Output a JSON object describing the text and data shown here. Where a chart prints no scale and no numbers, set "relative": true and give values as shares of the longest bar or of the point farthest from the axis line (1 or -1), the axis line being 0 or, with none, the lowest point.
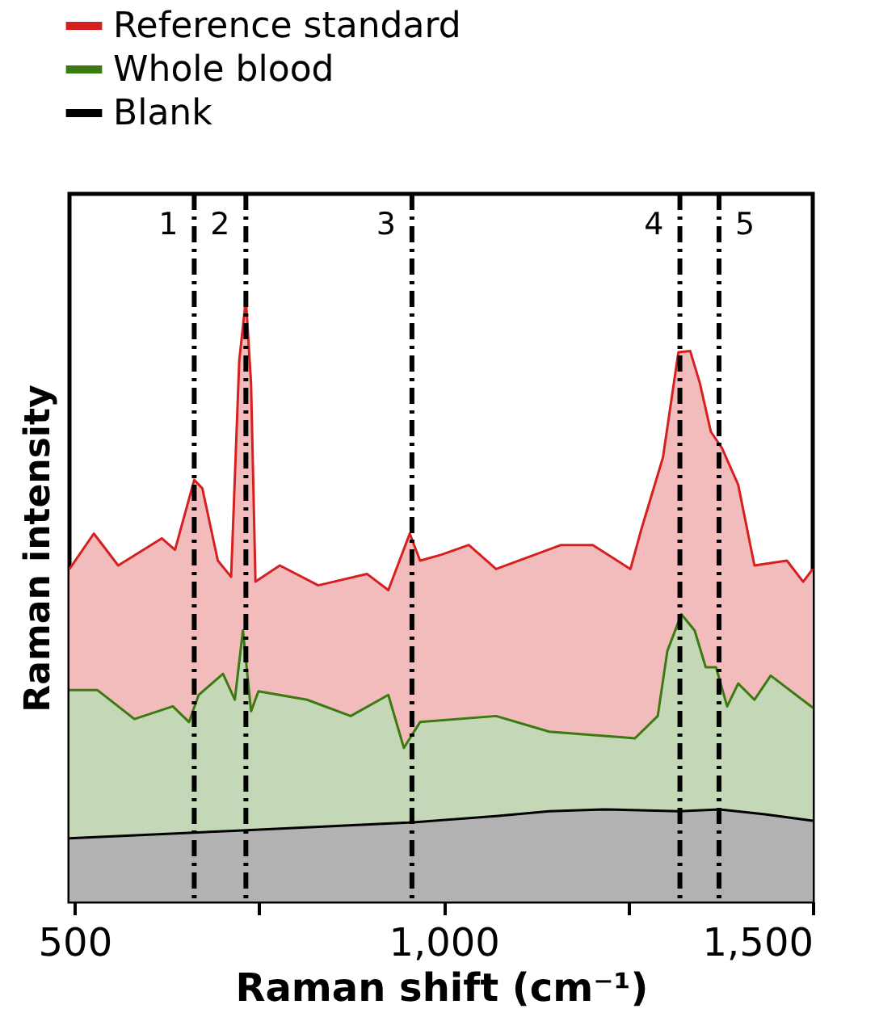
{
  "chart_data": {
    "type": "area",
    "relative": true,
    "xlabel": "Raman shift (cm⁻¹)",
    "ylabel": "Raman intensity",
    "xlim": [
      493,
      1500
    ],
    "xticks": [
      500,
      {
        "value": 750,
        "label": null
      },
      {
        "value": 1000,
        "label": "1,000"
      },
      {
        "value": 1250,
        "label": null
      },
      {
        "value": 1500,
        "label": "1,500"
      }
    ],
    "legend": "top left",
    "grid": false,
    "tick_labels": "x",
    "line_style": "solid",
    "series": [
      {
        "name": "Reference standard",
        "color": "#d62020",
        "x": [
          493,
          526,
          559,
          618,
          636,
          662,
          673,
          694,
          712,
          723,
          732,
          739,
          745,
          778,
          830,
          896,
          925,
          954,
          968,
          997,
          1034,
          1071,
          1159,
          1202,
          1253,
          1268,
          1297,
          1318,
          1334,
          1347,
          1362,
          1377,
          1399,
          1421,
          1465,
          1487,
          1500
        ],
        "values": [
          0.552,
          0.611,
          0.558,
          0.603,
          0.584,
          0.7,
          0.686,
          0.566,
          0.539,
          0.898,
          1,
          0.861,
          0.531,
          0.558,
          0.525,
          0.544,
          0.517,
          0.611,
          0.566,
          0.576,
          0.592,
          0.552,
          0.592,
          0.592,
          0.552,
          0.619,
          0.737,
          0.912,
          0.914,
          0.861,
          0.78,
          0.753,
          0.692,
          0.558,
          0.566,
          0.531,
          0.552
        ]
      },
      {
        "name": "Whole blood",
        "color": "#3a7a10",
        "x": [
          493,
          531,
          581,
          633,
          655,
          668,
          701,
          717,
          728,
          739,
          749,
          815,
          874,
          925,
          946,
          968,
          1071,
          1143,
          1259,
          1290,
          1303,
          1322,
          1340,
          1355,
          1369,
          1384,
          1399,
          1421,
          1443,
          1500
        ],
        "values": [
          0.351,
          0.351,
          0.303,
          0.324,
          0.298,
          0.343,
          0.378,
          0.335,
          0.45,
          0.316,
          0.349,
          0.335,
          0.308,
          0.343,
          0.255,
          0.298,
          0.308,
          0.282,
          0.271,
          0.308,
          0.416,
          0.477,
          0.45,
          0.389,
          0.389,
          0.324,
          0.362,
          0.335,
          0.375,
          0.322
        ]
      },
      {
        "name": "Blank",
        "color": "#000000",
        "x": [
          493,
          727,
          952,
          1071,
          1143,
          1216,
          1319,
          1374,
          1435,
          1500
        ],
        "values": [
          0.105,
          0.118,
          0.131,
          0.142,
          0.15,
          0.153,
          0.15,
          0.153,
          0.145,
          0.134
        ]
      }
    ],
    "ref_lines": [
      {
        "axis": "x",
        "value": 662,
        "color": "#000000",
        "line_style": "dashed"
      },
      {
        "axis": "x",
        "value": 732,
        "color": "#000000",
        "line_style": "dashed"
      },
      {
        "axis": "x",
        "value": 957,
        "color": "#000000",
        "line_style": "dashed"
      },
      {
        "axis": "x",
        "value": 1320,
        "color": "#000000",
        "line_style": "dashed"
      },
      {
        "axis": "x",
        "value": 1373,
        "color": "#000000",
        "line_style": "dashed"
      }
    ],
    "annotations": [
      {
        "text": "1",
        "x": 662
      },
      {
        "text": "2",
        "x": 732
      },
      {
        "text": "3",
        "x": 957
      },
      {
        "text": "4",
        "x": 1320
      },
      {
        "text": "5",
        "x": 1373
      }
    ]
  }
}
